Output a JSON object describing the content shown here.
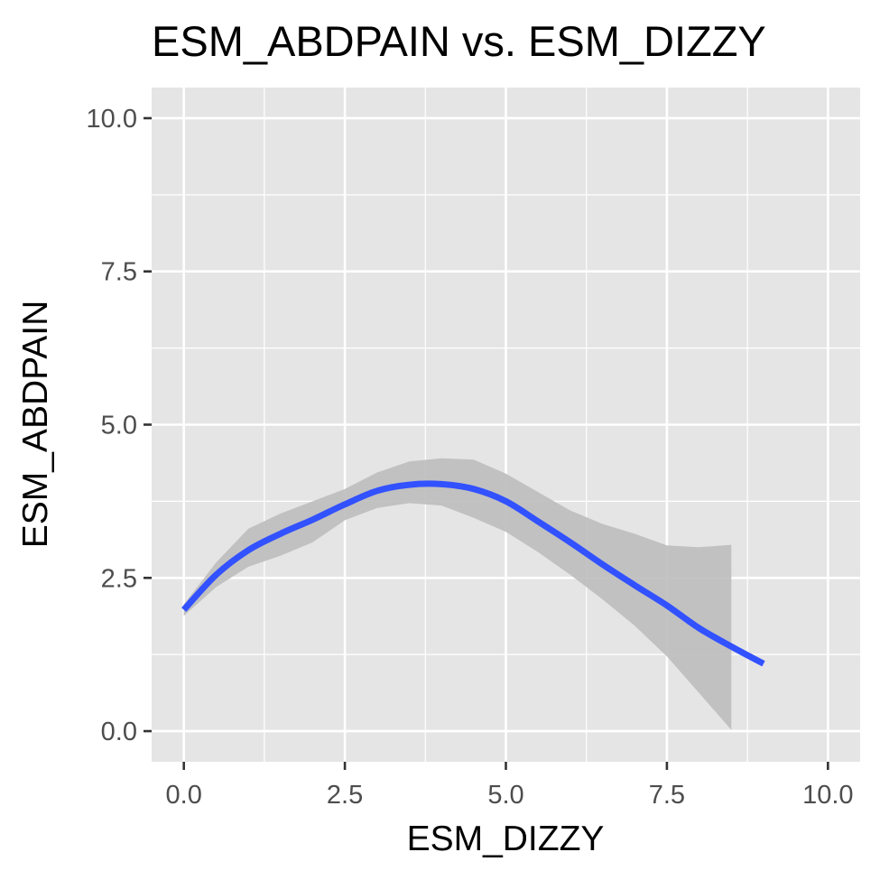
{
  "chart_data": {
    "type": "line",
    "title": "ESM_ABDPAIN vs. ESM_DIZZY",
    "xlabel": "ESM_DIZZY",
    "ylabel": "ESM_ABDPAIN",
    "xlim": [
      -0.5,
      10.5
    ],
    "ylim": [
      -0.5,
      10.5
    ],
    "x_ticks": [
      0,
      2.5,
      5,
      7.5,
      10
    ],
    "x_tick_labels": [
      "0.0",
      "2.5",
      "5.0",
      "7.5",
      "10.0"
    ],
    "y_ticks": [
      0,
      2.5,
      5,
      7.5,
      10
    ],
    "y_tick_labels": [
      "0.0",
      "2.5",
      "5.0",
      "7.5",
      "10.0"
    ],
    "grid": true,
    "legend": "none",
    "colors": {
      "panel": "#e5e5e5",
      "grid": "#ffffff",
      "line": "#3251ff",
      "ribbon": "#bdbdbd",
      "tick_text": "#4d4d4d",
      "tick_mark": "#333333"
    },
    "series": [
      {
        "kind": "smooth",
        "x": [
          0,
          0.5,
          1.0,
          1.5,
          2.0,
          2.5,
          3.0,
          3.5,
          4.0,
          4.5,
          5.0,
          5.5,
          6.0,
          6.5,
          7.0,
          7.5,
          8.0,
          8.5,
          9.0
        ],
        "y": [
          1.98,
          2.55,
          2.95,
          3.22,
          3.45,
          3.7,
          3.92,
          4.02,
          4.03,
          3.95,
          3.75,
          3.42,
          3.08,
          2.72,
          2.38,
          2.05,
          1.68,
          1.38,
          1.1
        ]
      }
    ],
    "confidence_band": {
      "x": [
        0,
        0.5,
        1.0,
        1.5,
        2.0,
        2.5,
        3.0,
        3.5,
        4.0,
        4.5,
        5.0,
        5.5,
        6.0,
        6.5,
        7.0,
        7.5,
        8.0,
        8.5
      ],
      "upper": [
        2.07,
        2.75,
        3.3,
        3.55,
        3.75,
        3.95,
        4.22,
        4.4,
        4.45,
        4.43,
        4.2,
        3.9,
        3.6,
        3.38,
        3.22,
        3.03,
        3.0,
        3.04
      ],
      "lower": [
        1.88,
        2.35,
        2.68,
        2.86,
        3.08,
        3.44,
        3.64,
        3.72,
        3.68,
        3.48,
        3.25,
        2.92,
        2.55,
        2.15,
        1.72,
        1.22,
        0.62,
        0.02
      ]
    }
  }
}
